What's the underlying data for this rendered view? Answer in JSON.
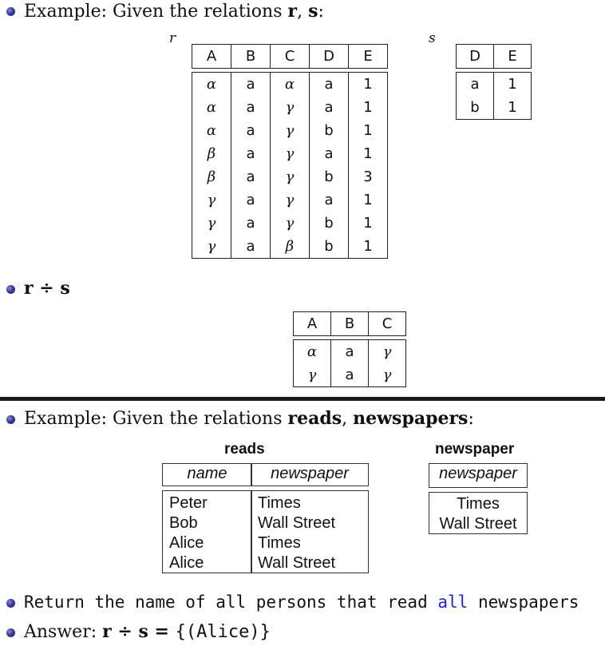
{
  "slide1": {
    "intro_prefix": "Example: Given the relations ",
    "intro_r": "r",
    "intro_sep": ", ",
    "intro_s": "s",
    "intro_suffix": ":",
    "r_name": "r",
    "s_name": "s",
    "r": {
      "columns": [
        "A",
        "B",
        "C",
        "D",
        "E"
      ],
      "rows": [
        [
          "α",
          "a",
          "α",
          "a",
          "1"
        ],
        [
          "α",
          "a",
          "γ",
          "a",
          "1"
        ],
        [
          "α",
          "a",
          "γ",
          "b",
          "1"
        ],
        [
          "β",
          "a",
          "γ",
          "a",
          "1"
        ],
        [
          "β",
          "a",
          "γ",
          "b",
          "3"
        ],
        [
          "γ",
          "a",
          "γ",
          "a",
          "1"
        ],
        [
          "γ",
          "a",
          "γ",
          "b",
          "1"
        ],
        [
          "γ",
          "a",
          "β",
          "b",
          "1"
        ]
      ]
    },
    "s": {
      "columns": [
        "D",
        "E"
      ],
      "rows": [
        [
          "a",
          "1"
        ],
        [
          "b",
          "1"
        ]
      ]
    },
    "division_label": "r ÷ s",
    "result": {
      "columns": [
        "A",
        "B",
        "C"
      ],
      "rows": [
        [
          "α",
          "a",
          "γ"
        ],
        [
          "γ",
          "a",
          "γ"
        ]
      ]
    }
  },
  "slide2": {
    "intro_prefix": "Example: Given the relations ",
    "intro_reads": "reads",
    "intro_sep": ", ",
    "intro_newspapers": "newspapers",
    "intro_suffix": ":",
    "reads_caption": "reads",
    "reads_headers": [
      "name",
      "newspaper"
    ],
    "reads_rows": [
      [
        "Peter",
        "Times"
      ],
      [
        "Bob",
        "Wall Street"
      ],
      [
        "Alice",
        "Times"
      ],
      [
        "Alice",
        "Wall Street"
      ]
    ],
    "newspaper_caption": "newspaper",
    "newspaper_header": "newspaper",
    "newspaper_rows": [
      "Times",
      "Wall Street"
    ],
    "question_prefix": "Return the name of all persons that read ",
    "question_emph": "all",
    "question_suffix": " newspapers",
    "answer_prefix": "Answer: ",
    "answer_expr": "r ÷ s = ",
    "answer_value": "{(Alice)}"
  }
}
